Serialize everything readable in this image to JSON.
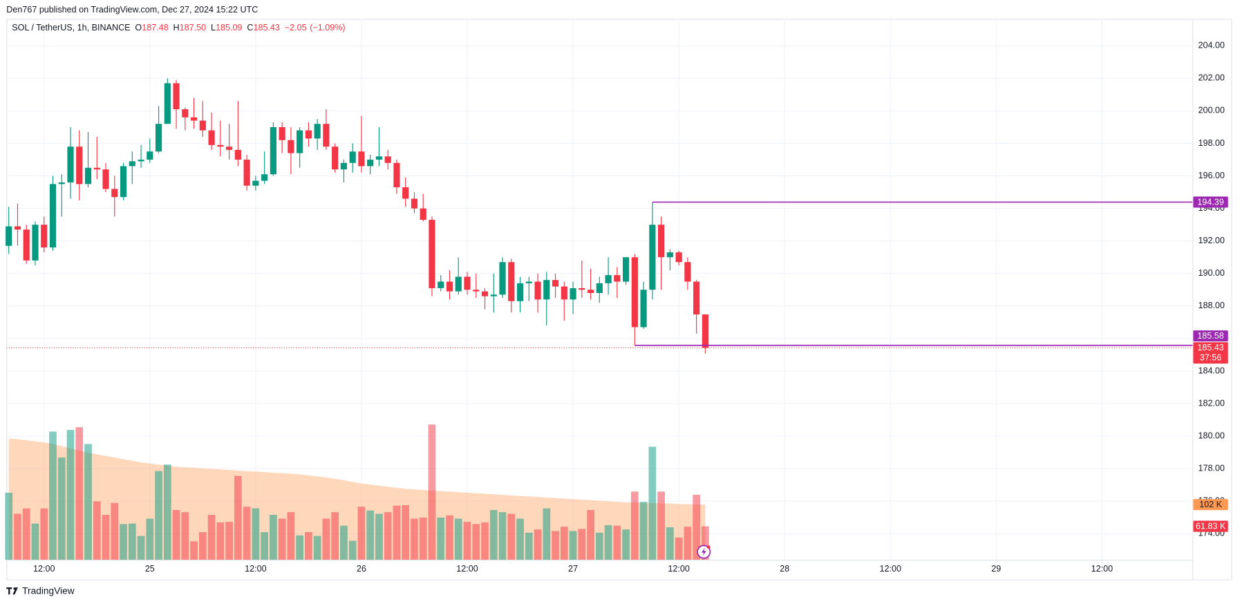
{
  "chart_data": {
    "type": "candlestick",
    "header": "Den767 published on TradingView.com, Dec 27, 2024 15:22 UTC",
    "legend": {
      "symbol": "SOL / TetherUS, 1h, BINANCE",
      "items": [
        {
          "key": "O",
          "value": 187.48
        },
        {
          "key": "H",
          "value": {
            "value": 187.5,
            "label": "187.50"
          }
        },
        {
          "key": "L",
          "value": 185.09
        },
        {
          "key": "C",
          "value": 185.43
        }
      ],
      "change": {
        "value": -2.05,
        "label": "−2.05"
      },
      "change_pct": {
        "value": -1.09,
        "label": "(−1.09%)"
      }
    },
    "open": [
      191.7,
      192.9,
      192.7,
      190.8,
      193.0,
      191.6,
      195.5,
      195.6,
      197.8,
      195.5,
      196.5,
      196.4,
      195.2,
      194.7,
      196.6,
      196.9,
      197.0,
      197.5,
      199.2,
      201.7,
      200.1,
      199.6,
      199.4,
      198.8,
      197.9,
      197.8,
      197.6,
      197.0,
      195.4,
      195.7,
      196.1,
      199.0,
      198.2,
      197.4,
      198.8,
      198.3,
      199.2,
      197.8,
      196.4,
      196.8,
      197.5,
      196.6,
      197.0,
      197.2,
      196.8,
      195.3,
      194.6,
      194.0,
      193.3,
      189.1,
      189.5,
      188.9,
      189.8,
      189.0,
      188.9,
      188.6,
      188.7,
      190.7,
      188.3,
      189.4,
      189.5,
      188.4,
      189.6,
      189.2,
      188.4,
      189.1,
      189.0,
      188.8,
      189.4,
      189.9,
      189.5,
      191.0,
      186.7,
      189.0,
      193.0,
      191.0,
      191.3,
      190.7,
      189.5,
      187.48
    ],
    "high": [
      194.1,
      194.3,
      193.0,
      193.2,
      193.5,
      196.0,
      196.1,
      199.0,
      198.8,
      198.7,
      198.4,
      196.8,
      196.0,
      196.8,
      197.5,
      197.9,
      198.3,
      200.3,
      202.0,
      201.9,
      200.2,
      200.8,
      200.6,
      199.9,
      199.4,
      199.2,
      200.6,
      197.3,
      196.0,
      197.5,
      199.3,
      199.3,
      199.0,
      199.0,
      199.3,
      199.5,
      200.1,
      198.0,
      197.0,
      198.0,
      199.7,
      197.3,
      199.0,
      197.6,
      197.0,
      195.9,
      195.0,
      194.9,
      193.5,
      189.9,
      190.2,
      191.0,
      190.1,
      190.0,
      189.1,
      190.0,
      191.0,
      190.9,
      189.8,
      189.8,
      190.0,
      190.1,
      190.0,
      189.5,
      189.5,
      190.8,
      190.3,
      189.8,
      191.0,
      190.4,
      191.0,
      191.2,
      189.5,
      194.39,
      193.5,
      191.5,
      191.4,
      191.0,
      189.6,
      187.5
    ],
    "low": [
      191.2,
      191.7,
      190.6,
      190.5,
      191.3,
      191.4,
      193.5,
      194.6,
      194.5,
      195.3,
      195.8,
      195.0,
      193.5,
      194.5,
      195.5,
      196.5,
      196.8,
      197.4,
      199.2,
      198.9,
      198.8,
      198.9,
      198.4,
      197.6,
      197.2,
      197.0,
      196.6,
      195.1,
      195.1,
      195.5,
      196.0,
      197.4,
      196.1,
      196.5,
      197.8,
      197.6,
      197.6,
      196.2,
      195.6,
      196.2,
      196.2,
      196.1,
      196.6,
      196.4,
      194.9,
      194.1,
      193.7,
      193.2,
      188.6,
      188.9,
      188.4,
      188.7,
      188.7,
      188.5,
      187.8,
      187.6,
      188.5,
      187.6,
      187.6,
      188.3,
      187.6,
      186.8,
      188.5,
      187.1,
      187.5,
      188.5,
      188.4,
      188.2,
      188.7,
      188.5,
      189.3,
      185.58,
      186.6,
      188.4,
      189.0,
      190.2,
      190.5,
      189.0,
      186.3,
      185.09
    ],
    "close": [
      192.9,
      192.7,
      190.8,
      193.0,
      191.6,
      195.5,
      195.6,
      197.8,
      195.5,
      196.5,
      196.4,
      195.2,
      194.7,
      196.6,
      196.9,
      197.0,
      197.5,
      199.2,
      201.7,
      200.1,
      199.6,
      199.4,
      198.8,
      197.9,
      197.8,
      197.6,
      197.0,
      195.4,
      195.7,
      196.1,
      199.0,
      198.2,
      197.4,
      198.8,
      198.3,
      199.2,
      197.8,
      196.4,
      196.8,
      197.5,
      196.6,
      197.0,
      197.2,
      196.8,
      195.3,
      194.6,
      194.0,
      193.3,
      189.1,
      189.5,
      188.9,
      189.8,
      189.0,
      188.9,
      188.6,
      188.7,
      190.7,
      188.3,
      189.4,
      189.5,
      188.4,
      189.6,
      189.2,
      188.4,
      189.1,
      189.0,
      188.8,
      189.4,
      189.9,
      189.5,
      191.0,
      186.7,
      189.0,
      193.0,
      191.0,
      191.3,
      190.7,
      189.5,
      187.48,
      185.43
    ],
    "volume": [
      124,
      85,
      95,
      67,
      95,
      237,
      189,
      240,
      245,
      214,
      108,
      83,
      105,
      66,
      67,
      44,
      76,
      164,
      176,
      92,
      88,
      34,
      51,
      83,
      69,
      70,
      155,
      98,
      95,
      51,
      83,
      76,
      88,
      45,
      51,
      44,
      76,
      88,
      63,
      35,
      98,
      91,
      85,
      88,
      100,
      101,
      76,
      78,
      250,
      78,
      82,
      76,
      70,
      66,
      69,
      92,
      88,
      85,
      76,
      50,
      56,
      95,
      53,
      61,
      53,
      57,
      92,
      50,
      64,
      63,
      56,
      126,
      107,
      209,
      126,
      60,
      41,
      61,
      120,
      61.83
    ],
    "volume_ma": [
      224,
      223,
      221,
      219,
      217,
      214,
      210,
      206,
      202,
      198,
      195,
      192,
      189,
      186,
      183,
      180,
      178,
      176,
      174,
      172,
      171,
      170,
      169,
      168,
      167,
      166,
      165,
      164,
      163,
      162,
      161,
      160,
      159,
      158,
      156,
      154,
      152,
      150,
      147,
      144,
      141,
      139,
      137,
      135,
      133,
      131,
      130,
      129,
      128,
      127,
      126,
      125,
      124,
      123,
      122,
      121,
      120,
      119,
      118,
      117,
      116,
      115,
      114,
      113,
      112,
      111,
      110,
      109,
      108,
      107,
      106,
      106,
      105,
      105,
      104,
      104,
      103,
      103,
      102,
      102
    ],
    "volume_label": {
      "value": 61.83,
      "label": "61.83 K"
    },
    "volume_ma_label": {
      "value": 102,
      "label": "102 K"
    },
    "levels": [
      194.39,
      185.58
    ],
    "countdown": "37:56",
    "colors": {
      "up": "#089981",
      "down": "#f23645",
      "level": "#9c27b0",
      "ma": "#ff9850"
    },
    "xlim": [
      -0.27,
      134.26
    ],
    "xticks": [
      {
        "value": 4,
        "label": "12:00"
      },
      {
        "value": 16,
        "label": "25"
      },
      {
        "value": 28,
        "label": "12:00"
      },
      {
        "value": 40,
        "label": "26"
      },
      {
        "value": 52,
        "label": "12:00"
      },
      {
        "value": 64,
        "label": "27"
      },
      {
        "value": 76,
        "label": "12:00"
      },
      {
        "value": 88,
        "label": "28"
      },
      {
        "value": 100,
        "label": "12:00"
      },
      {
        "value": 112,
        "label": "29"
      },
      {
        "value": 124,
        "label": "12:00"
      }
    ],
    "ylim": [
      172.4,
      205.65
    ],
    "yticks": [
      {
        "value": 174,
        "label": "174.00"
      },
      {
        "value": 176,
        "label": "176.00"
      },
      {
        "value": 178,
        "label": "178.00"
      },
      {
        "value": 180,
        "label": "180.00"
      },
      {
        "value": 182,
        "label": "182.00"
      },
      {
        "value": 184,
        "label": "184.00"
      },
      {
        "value": 186,
        "label": "186.00"
      },
      {
        "value": 188,
        "label": "188.00"
      },
      {
        "value": 190,
        "label": "190.00"
      },
      {
        "value": 192,
        "label": "192.00"
      },
      {
        "value": 194,
        "label": "194.00"
      },
      {
        "value": 196,
        "label": "196.00"
      },
      {
        "value": 198,
        "label": "198.00"
      },
      {
        "value": 200,
        "label": "200.00"
      },
      {
        "value": 202,
        "label": "202.00"
      },
      {
        "value": 204,
        "label": "204.00"
      }
    ],
    "y2lim": [
      0,
      1000
    ],
    "grid": true,
    "footer": "TradingView"
  }
}
